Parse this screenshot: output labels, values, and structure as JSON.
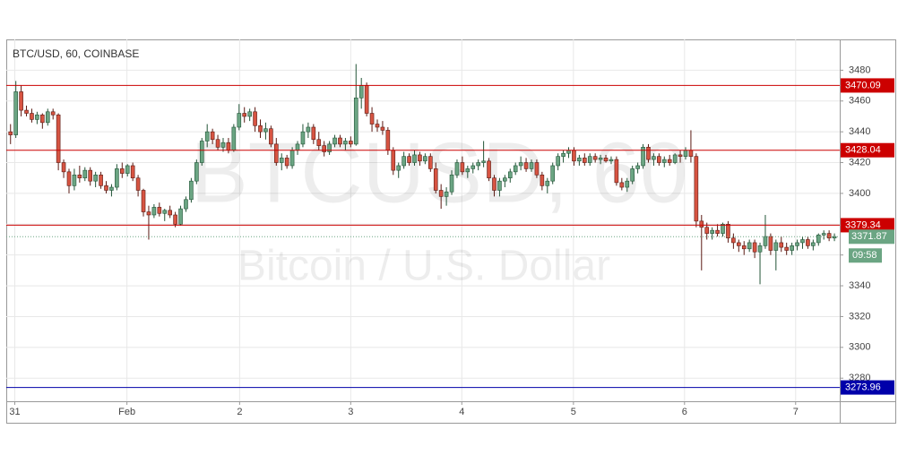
{
  "chart_data": {
    "type": "candlestick",
    "title": "BTC/USD, 60, COINBASE",
    "watermark": "BTCUSD, 60",
    "watermark_subtitle": "Bitcoin / U.S. Dollar",
    "up_color": "#6ba583",
    "down_color": "#d75442",
    "ylim": [
      3265,
      3500
    ],
    "yticks": [
      3280,
      3300,
      3320,
      3340,
      3360,
      3380,
      3400,
      3420,
      3440,
      3460,
      3480
    ],
    "grid": true,
    "xlim": [
      -0.8,
      156
    ],
    "xticks": [
      {
        "value": 0.8,
        "label": "31"
      },
      {
        "value": 21.9,
        "label": "Feb"
      },
      {
        "value": 43.1,
        "label": "2"
      },
      {
        "value": 64,
        "label": "3"
      },
      {
        "value": 84.9,
        "label": "4"
      },
      {
        "value": 105.9,
        "label": "5"
      },
      {
        "value": 126.8,
        "label": "6"
      },
      {
        "value": 147.7,
        "label": "7"
      }
    ],
    "levels": [
      {
        "value": 3470.09,
        "color": "#cc0000"
      },
      {
        "value": 3428.04,
        "color": "#cc0000"
      },
      {
        "value": 3379.34,
        "color": "#cc0000"
      },
      {
        "value": 3273.96,
        "color": "#0000aa"
      }
    ],
    "last_price": 3371.87,
    "last_price_color": "#6ba583",
    "countdown": "09:58",
    "candles": [
      [
        3440,
        3445,
        3432,
        3438
      ],
      [
        3438,
        3473,
        3436,
        3466
      ],
      [
        3466,
        3470,
        3450,
        3454
      ],
      [
        3454,
        3457,
        3450,
        3452
      ],
      [
        3452,
        3455,
        3446,
        3448
      ],
      [
        3448,
        3453,
        3445,
        3451
      ],
      [
        3451,
        3452,
        3442,
        3446
      ],
      [
        3446,
        3455,
        3444,
        3453
      ],
      [
        3453,
        3455,
        3448,
        3451
      ],
      [
        3451,
        3452,
        3415,
        3420
      ],
      [
        3420,
        3422,
        3410,
        3414
      ],
      [
        3414,
        3416,
        3400,
        3405
      ],
      [
        3405,
        3416,
        3402,
        3412
      ],
      [
        3412,
        3418,
        3407,
        3410
      ],
      [
        3410,
        3417,
        3408,
        3415
      ],
      [
        3415,
        3417,
        3405,
        3408
      ],
      [
        3408,
        3414,
        3404,
        3412
      ],
      [
        3412,
        3414,
        3403,
        3405
      ],
      [
        3405,
        3408,
        3400,
        3402
      ],
      [
        3402,
        3406,
        3398,
        3404
      ],
      [
        3404,
        3419,
        3402,
        3416
      ],
      [
        3416,
        3420,
        3410,
        3413
      ],
      [
        3413,
        3419,
        3411,
        3418
      ],
      [
        3418,
        3420,
        3408,
        3410
      ],
      [
        3410,
        3412,
        3398,
        3402
      ],
      [
        3402,
        3403,
        3385,
        3388
      ],
      [
        3388,
        3392,
        3370,
        3386
      ],
      [
        3386,
        3393,
        3384,
        3391
      ],
      [
        3391,
        3394,
        3385,
        3387
      ],
      [
        3387,
        3390,
        3382,
        3389
      ],
      [
        3389,
        3392,
        3384,
        3386
      ],
      [
        3386,
        3388,
        3378,
        3380
      ],
      [
        3380,
        3392,
        3379,
        3390
      ],
      [
        3390,
        3398,
        3388,
        3396
      ],
      [
        3396,
        3410,
        3394,
        3408
      ],
      [
        3408,
        3422,
        3406,
        3420
      ],
      [
        3420,
        3436,
        3418,
        3434
      ],
      [
        3434,
        3445,
        3430,
        3440
      ],
      [
        3440,
        3442,
        3432,
        3435
      ],
      [
        3435,
        3438,
        3428,
        3430
      ],
      [
        3430,
        3436,
        3427,
        3433
      ],
      [
        3433,
        3436,
        3426,
        3428
      ],
      [
        3428,
        3445,
        3427,
        3443
      ],
      [
        3443,
        3458,
        3441,
        3452
      ],
      [
        3452,
        3456,
        3446,
        3450
      ],
      [
        3450,
        3455,
        3447,
        3453
      ],
      [
        3453,
        3456,
        3440,
        3444
      ],
      [
        3444,
        3448,
        3436,
        3440
      ],
      [
        3440,
        3446,
        3435,
        3442
      ],
      [
        3442,
        3444,
        3430,
        3432
      ],
      [
        3432,
        3436,
        3418,
        3420
      ],
      [
        3420,
        3426,
        3415,
        3423
      ],
      [
        3423,
        3425,
        3416,
        3418
      ],
      [
        3418,
        3430,
        3416,
        3428
      ],
      [
        3428,
        3434,
        3425,
        3432
      ],
      [
        3432,
        3445,
        3430,
        3440
      ],
      [
        3440,
        3446,
        3436,
        3443
      ],
      [
        3443,
        3445,
        3432,
        3435
      ],
      [
        3435,
        3440,
        3428,
        3431
      ],
      [
        3431,
        3434,
        3424,
        3427
      ],
      [
        3427,
        3434,
        3425,
        3432
      ],
      [
        3432,
        3438,
        3430,
        3436
      ],
      [
        3436,
        3438,
        3430,
        3432
      ],
      [
        3432,
        3436,
        3428,
        3434
      ],
      [
        3434,
        3437,
        3430,
        3432
      ],
      [
        3432,
        3484,
        3431,
        3462
      ],
      [
        3462,
        3475,
        3455,
        3470
      ],
      [
        3470,
        3472,
        3450,
        3452
      ],
      [
        3452,
        3456,
        3440,
        3445
      ],
      [
        3445,
        3448,
        3440,
        3443
      ],
      [
        3443,
        3447,
        3438,
        3441
      ],
      [
        3441,
        3443,
        3425,
        3428
      ],
      [
        3428,
        3430,
        3412,
        3415
      ],
      [
        3415,
        3420,
        3410,
        3418
      ],
      [
        3418,
        3427,
        3416,
        3424
      ],
      [
        3424,
        3426,
        3418,
        3420
      ],
      [
        3420,
        3428,
        3418,
        3425
      ],
      [
        3425,
        3427,
        3418,
        3421
      ],
      [
        3421,
        3426,
        3419,
        3424
      ],
      [
        3424,
        3426,
        3414,
        3416
      ],
      [
        3416,
        3420,
        3400,
        3402
      ],
      [
        3402,
        3406,
        3390,
        3398
      ],
      [
        3398,
        3404,
        3392,
        3401
      ],
      [
        3401,
        3415,
        3399,
        3412
      ],
      [
        3412,
        3422,
        3410,
        3420
      ],
      [
        3420,
        3424,
        3412,
        3414
      ],
      [
        3414,
        3418,
        3410,
        3416
      ],
      [
        3416,
        3420,
        3413,
        3418
      ],
      [
        3418,
        3422,
        3415,
        3420
      ],
      [
        3420,
        3434,
        3417,
        3421
      ],
      [
        3421,
        3423,
        3408,
        3410
      ],
      [
        3410,
        3412,
        3398,
        3402
      ],
      [
        3402,
        3410,
        3398,
        3408
      ],
      [
        3408,
        3412,
        3404,
        3410
      ],
      [
        3410,
        3416,
        3407,
        3414
      ],
      [
        3414,
        3420,
        3412,
        3418
      ],
      [
        3418,
        3424,
        3415,
        3420
      ],
      [
        3420,
        3423,
        3414,
        3416
      ],
      [
        3416,
        3422,
        3414,
        3420
      ],
      [
        3420,
        3422,
        3410,
        3412
      ],
      [
        3412,
        3414,
        3402,
        3405
      ],
      [
        3405,
        3410,
        3400,
        3408
      ],
      [
        3408,
        3420,
        3406,
        3418
      ],
      [
        3418,
        3426,
        3415,
        3424
      ],
      [
        3424,
        3428,
        3420,
        3426
      ],
      [
        3426,
        3430,
        3423,
        3428
      ],
      [
        3428,
        3430,
        3418,
        3421
      ],
      [
        3421,
        3425,
        3418,
        3423
      ],
      [
        3423,
        3426,
        3418,
        3420
      ],
      [
        3420,
        3426,
        3418,
        3424
      ],
      [
        3424,
        3426,
        3420,
        3422
      ],
      [
        3422,
        3425,
        3419,
        3423
      ],
      [
        3423,
        3425,
        3420,
        3421
      ],
      [
        3421,
        3424,
        3419,
        3422
      ],
      [
        3422,
        3424,
        3405,
        3407
      ],
      [
        3407,
        3410,
        3402,
        3404
      ],
      [
        3404,
        3410,
        3401,
        3408
      ],
      [
        3408,
        3418,
        3406,
        3416
      ],
      [
        3416,
        3420,
        3413,
        3418
      ],
      [
        3418,
        3432,
        3416,
        3430
      ],
      [
        3430,
        3432,
        3420,
        3422
      ],
      [
        3422,
        3426,
        3418,
        3424
      ],
      [
        3424,
        3426,
        3418,
        3420
      ],
      [
        3420,
        3424,
        3417,
        3422
      ],
      [
        3422,
        3425,
        3418,
        3420
      ],
      [
        3420,
        3426,
        3419,
        3425
      ],
      [
        3425,
        3428,
        3420,
        3424
      ],
      [
        3424,
        3430,
        3422,
        3428
      ],
      [
        3428,
        3441,
        3420,
        3424
      ],
      [
        3424,
        3426,
        3378,
        3382
      ],
      [
        3382,
        3386,
        3350,
        3378
      ],
      [
        3378,
        3381,
        3370,
        3374
      ],
      [
        3374,
        3378,
        3370,
        3376
      ],
      [
        3376,
        3380,
        3372,
        3374
      ],
      [
        3374,
        3381,
        3372,
        3380
      ],
      [
        3380,
        3382,
        3368,
        3371
      ],
      [
        3371,
        3374,
        3364,
        3368
      ],
      [
        3368,
        3370,
        3362,
        3366
      ],
      [
        3366,
        3369,
        3360,
        3364
      ],
      [
        3364,
        3370,
        3362,
        3368
      ],
      [
        3368,
        3370,
        3358,
        3362
      ],
      [
        3362,
        3368,
        3341,
        3366
      ],
      [
        3366,
        3386,
        3364,
        3372
      ],
      [
        3372,
        3374,
        3360,
        3363
      ],
      [
        3363,
        3370,
        3350,
        3368
      ],
      [
        3368,
        3372,
        3362,
        3365
      ],
      [
        3365,
        3368,
        3360,
        3363
      ],
      [
        3363,
        3368,
        3360,
        3366
      ],
      [
        3366,
        3370,
        3363,
        3368
      ],
      [
        3368,
        3372,
        3364,
        3370
      ],
      [
        3370,
        3372,
        3364,
        3366
      ],
      [
        3366,
        3370,
        3363,
        3368
      ],
      [
        3368,
        3374,
        3366,
        3373
      ],
      [
        3373,
        3376,
        3370,
        3374
      ],
      [
        3374,
        3376,
        3369,
        3371
      ],
      [
        3371,
        3374,
        3369,
        3372
      ]
    ]
  }
}
